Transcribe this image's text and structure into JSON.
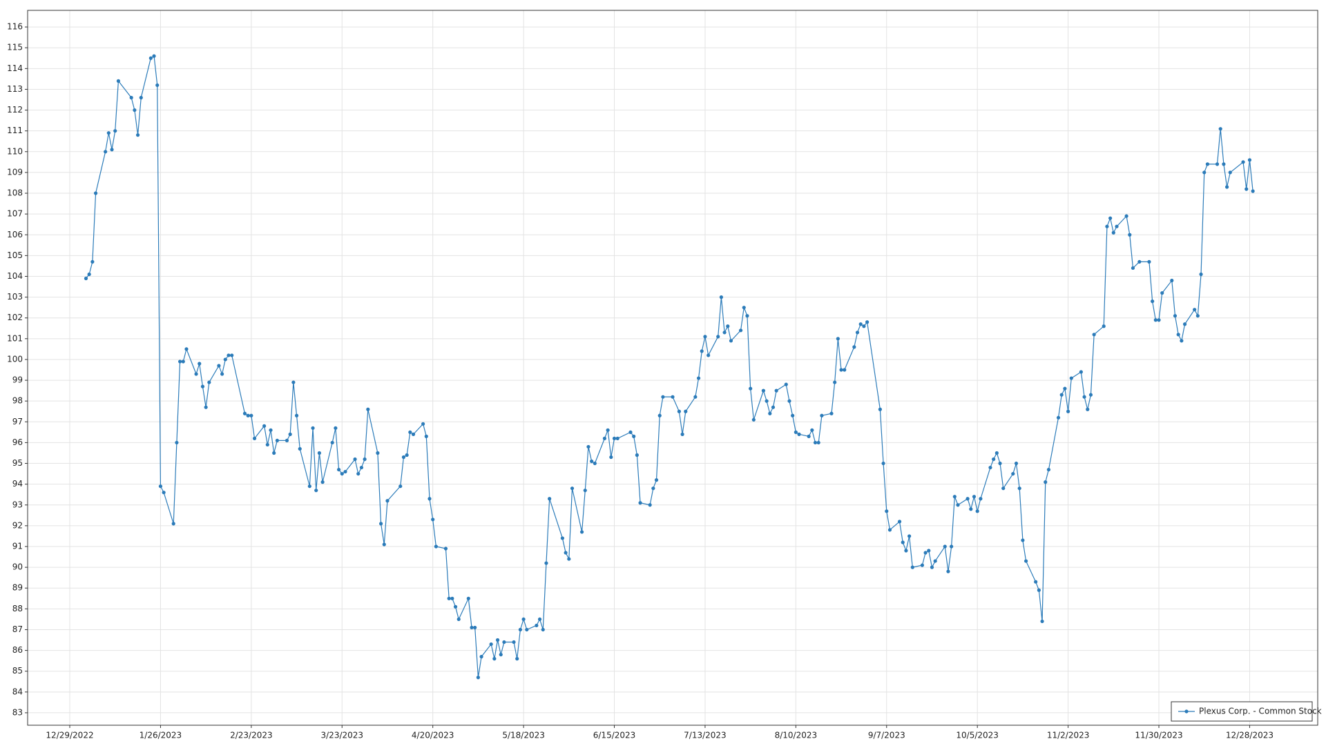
{
  "chart_data": {
    "type": "line",
    "x": [
      "1/3/2023",
      "1/4/2023",
      "1/5/2023",
      "1/6/2023",
      "1/9/2023",
      "1/10/2023",
      "1/11/2023",
      "1/12/2023",
      "1/13/2023",
      "1/17/2023",
      "1/18/2023",
      "1/19/2023",
      "1/20/2023",
      "1/23/2023",
      "1/24/2023",
      "1/25/2023",
      "1/26/2023",
      "1/27/2023",
      "1/30/2023",
      "1/31/2023",
      "2/1/2023",
      "2/2/2023",
      "2/3/2023",
      "2/6/2023",
      "2/7/2023",
      "2/8/2023",
      "2/9/2023",
      "2/10/2023",
      "2/13/2023",
      "2/14/2023",
      "2/15/2023",
      "2/16/2023",
      "2/17/2023",
      "2/21/2023",
      "2/22/2023",
      "2/23/2023",
      "2/24/2023",
      "2/27/2023",
      "2/28/2023",
      "3/1/2023",
      "3/2/2023",
      "3/3/2023",
      "3/6/2023",
      "3/7/2023",
      "3/8/2023",
      "3/9/2023",
      "3/10/2023",
      "3/13/2023",
      "3/14/2023",
      "3/15/2023",
      "3/16/2023",
      "3/17/2023",
      "3/20/2023",
      "3/21/2023",
      "3/22/2023",
      "3/23/2023",
      "3/24/2023",
      "3/27/2023",
      "3/28/2023",
      "3/29/2023",
      "3/30/2023",
      "3/31/2023",
      "4/3/2023",
      "4/4/2023",
      "4/5/2023",
      "4/6/2023",
      "4/10/2023",
      "4/11/2023",
      "4/12/2023",
      "4/13/2023",
      "4/14/2023",
      "4/17/2023",
      "4/18/2023",
      "4/19/2023",
      "4/20/2023",
      "4/21/2023",
      "4/24/2023",
      "4/25/2023",
      "4/26/2023",
      "4/27/2023",
      "4/28/2023",
      "5/1/2023",
      "5/2/2023",
      "5/3/2023",
      "5/4/2023",
      "5/5/2023",
      "5/8/2023",
      "5/9/2023",
      "5/10/2023",
      "5/11/2023",
      "5/12/2023",
      "5/15/2023",
      "5/16/2023",
      "5/17/2023",
      "5/18/2023",
      "5/19/2023",
      "5/22/2023",
      "5/23/2023",
      "5/24/2023",
      "5/25/2023",
      "5/26/2023",
      "5/30/2023",
      "5/31/2023",
      "6/1/2023",
      "6/2/2023",
      "6/5/2023",
      "6/6/2023",
      "6/7/2023",
      "6/8/2023",
      "6/9/2023",
      "6/12/2023",
      "6/13/2023",
      "6/14/2023",
      "6/15/2023",
      "6/16/2023",
      "6/20/2023",
      "6/21/2023",
      "6/22/2023",
      "6/23/2023",
      "6/26/2023",
      "6/27/2023",
      "6/28/2023",
      "6/29/2023",
      "6/30/2023",
      "7/3/2023",
      "7/5/2023",
      "7/6/2023",
      "7/7/2023",
      "7/10/2023",
      "7/11/2023",
      "7/12/2023",
      "7/13/2023",
      "7/14/2023",
      "7/17/2023",
      "7/18/2023",
      "7/19/2023",
      "7/20/2023",
      "7/21/2023",
      "7/24/2023",
      "7/25/2023",
      "7/26/2023",
      "7/27/2023",
      "7/28/2023",
      "7/31/2023",
      "8/1/2023",
      "8/2/2023",
      "8/3/2023",
      "8/4/2023",
      "8/7/2023",
      "8/8/2023",
      "8/9/2023",
      "8/10/2023",
      "8/11/2023",
      "8/14/2023",
      "8/15/2023",
      "8/16/2023",
      "8/17/2023",
      "8/18/2023",
      "8/21/2023",
      "8/22/2023",
      "8/23/2023",
      "8/24/2023",
      "8/25/2023",
      "8/28/2023",
      "8/29/2023",
      "8/30/2023",
      "8/31/2023",
      "9/1/2023",
      "9/5/2023",
      "9/6/2023",
      "9/7/2023",
      "9/8/2023",
      "9/11/2023",
      "9/12/2023",
      "9/13/2023",
      "9/14/2023",
      "9/15/2023",
      "9/18/2023",
      "9/19/2023",
      "9/20/2023",
      "9/21/2023",
      "9/22/2023",
      "9/25/2023",
      "9/26/2023",
      "9/27/2023",
      "9/28/2023",
      "9/29/2023",
      "10/2/2023",
      "10/3/2023",
      "10/4/2023",
      "10/5/2023",
      "10/6/2023",
      "10/9/2023",
      "10/10/2023",
      "10/11/2023",
      "10/12/2023",
      "10/13/2023",
      "10/16/2023",
      "10/17/2023",
      "10/18/2023",
      "10/19/2023",
      "10/20/2023",
      "10/23/2023",
      "10/24/2023",
      "10/25/2023",
      "10/26/2023",
      "10/27/2023",
      "10/30/2023",
      "10/31/2023",
      "11/1/2023",
      "11/2/2023",
      "11/3/2023",
      "11/6/2023",
      "11/7/2023",
      "11/8/2023",
      "11/9/2023",
      "11/10/2023",
      "11/13/2023",
      "11/14/2023",
      "11/15/2023",
      "11/16/2023",
      "11/17/2023",
      "11/20/2023",
      "11/21/2023",
      "11/22/2023",
      "11/24/2023",
      "11/27/2023",
      "11/28/2023",
      "11/29/2023",
      "11/30/2023",
      "12/1/2023",
      "12/4/2023",
      "12/5/2023",
      "12/6/2023",
      "12/7/2023",
      "12/8/2023",
      "12/11/2023",
      "12/12/2023",
      "12/13/2023",
      "12/14/2023",
      "12/15/2023",
      "12/18/2023",
      "12/19/2023",
      "12/20/2023",
      "12/21/2023",
      "12/22/2023",
      "12/26/2023",
      "12/27/2023",
      "12/28/2023",
      "12/29/2023"
    ],
    "series": [
      {
        "name": "Plexus Corp. - Common Stock",
        "color": "#2b7bb9",
        "values": [
          103.9,
          104.1,
          104.7,
          108,
          110,
          110.9,
          110.1,
          111,
          113.4,
          112.6,
          112,
          110.8,
          112.6,
          114.5,
          114.6,
          113.2,
          93.9,
          93.6,
          92.1,
          96,
          99.9,
          99.9,
          100.5,
          99.3,
          99.8,
          98.7,
          97.7,
          98.9,
          99.7,
          99.3,
          100,
          100.2,
          100.2,
          97.4,
          97.3,
          97.3,
          96.2,
          96.8,
          95.9,
          96.6,
          95.5,
          96.1,
          96.1,
          96.4,
          98.9,
          97.3,
          95.7,
          93.9,
          96.7,
          93.7,
          95.5,
          94.1,
          96,
          96.7,
          94.7,
          94.5,
          94.6,
          95.2,
          94.5,
          94.8,
          95.2,
          97.6,
          95.5,
          92.1,
          91.1,
          93.2,
          93.9,
          95.3,
          95.4,
          96.5,
          96.4,
          96.9,
          96.3,
          93.3,
          92.3,
          91,
          90.9,
          88.5,
          88.5,
          88.1,
          87.5,
          88.5,
          87.1,
          87.1,
          84.7,
          85.7,
          86.3,
          85.6,
          86.5,
          85.8,
          86.4,
          86.4,
          85.6,
          87,
          87.5,
          87,
          87.2,
          87.5,
          87,
          90.2,
          93.3,
          91.4,
          90.7,
          90.4,
          93.8,
          91.7,
          93.7,
          95.8,
          95.1,
          95,
          96.2,
          96.6,
          95.3,
          96.2,
          96.2,
          96.5,
          96.3,
          95.4,
          93.1,
          93,
          93.8,
          94.2,
          97.3,
          98.2,
          98.2,
          97.5,
          96.4,
          97.5,
          98.2,
          99.1,
          100.4,
          101.1,
          100.2,
          101.1,
          103,
          101.3,
          101.6,
          100.9,
          101.4,
          102.5,
          102.1,
          98.6,
          97.1,
          98.5,
          98,
          97.4,
          97.7,
          98.5,
          98.8,
          98,
          97.3,
          96.5,
          96.4,
          96.3,
          96.6,
          96,
          96,
          97.3,
          97.4,
          98.9,
          101,
          99.5,
          99.5,
          100.6,
          101.3,
          101.7,
          101.6,
          101.8,
          97.6,
          95,
          92.7,
          91.8,
          92.2,
          91.2,
          90.8,
          91.5,
          90,
          90.1,
          90.7,
          90.8,
          90,
          90.3,
          91,
          89.8,
          91,
          93.4,
          93,
          93.3,
          92.8,
          93.4,
          92.7,
          93.3,
          94.8,
          95.2,
          95.5,
          95,
          93.8,
          94.5,
          95,
          93.8,
          91.3,
          90.3,
          89.3,
          88.9,
          87.4,
          94.1,
          94.7,
          97.2,
          98.3,
          98.6,
          97.5,
          99.1,
          99.4,
          98.2,
          97.6,
          98.3,
          101.2,
          101.6,
          106.4,
          106.8,
          106.1,
          106.4,
          106.9,
          106,
          104.4,
          104.7,
          104.7,
          102.8,
          101.9,
          101.9,
          103.2,
          103.8,
          102.1,
          101.2,
          100.9,
          101.7,
          102.4,
          102.1,
          104.1,
          109,
          109.4,
          109.4,
          111.1,
          109.4,
          108.3,
          109,
          109.5,
          108.2,
          109.6,
          108.1
        ]
      }
    ],
    "xlim": [
      "12/16/2022",
      "1/18/2024"
    ],
    "xticks": [
      "12/29/2022",
      "1/26/2023",
      "2/23/2023",
      "3/23/2023",
      "4/20/2023",
      "5/18/2023",
      "6/15/2023",
      "7/13/2023",
      "8/10/2023",
      "9/7/2023",
      "10/5/2023",
      "11/2/2023",
      "11/30/2023",
      "12/28/2023"
    ],
    "ylim": [
      82.4,
      116.8
    ],
    "yticks": [
      83,
      84,
      85,
      86,
      87,
      88,
      89,
      90,
      91,
      92,
      93,
      94,
      95,
      96,
      97,
      98,
      99,
      100,
      101,
      102,
      103,
      104,
      105,
      106,
      107,
      108,
      109,
      110,
      111,
      112,
      113,
      114,
      115,
      116
    ],
    "grid": true,
    "legend": "lower right"
  }
}
